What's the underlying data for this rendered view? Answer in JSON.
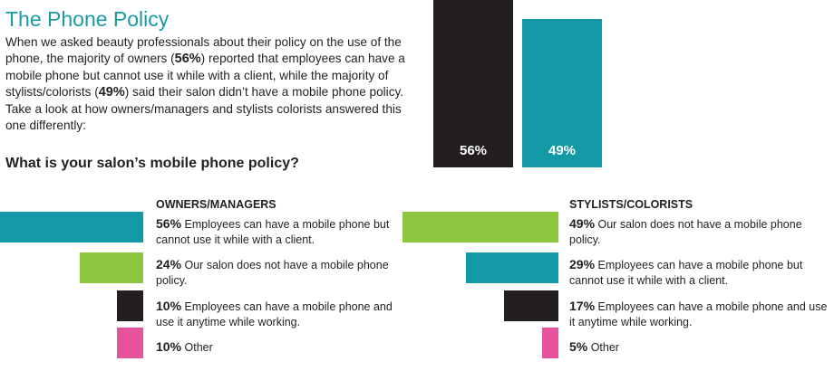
{
  "title": "The Phone Policy",
  "intro": {
    "part1": "When we asked beauty professionals about their policy on the use of the phone, the majority of owners (",
    "owners_pct": "56%",
    "part2": ") reported that employees can have a mobile phone but cannot use it while with a client, while the majority of stylists/colorists (",
    "stylists_pct": "49%",
    "part3": ") said their salon didn’t have a mobile phone policy. Take a look at how owners/managers and stylists colorists answered this one differently:"
  },
  "question": "What is your salon’s mobile phone policy?",
  "colors": {
    "teal": "#139aa6",
    "green": "#8dc63f",
    "black": "#231f20",
    "pink": "#e8519c",
    "title": "#1a9aa6"
  },
  "chart_data": [
    {
      "type": "bar",
      "title": "",
      "categories": [
        "Owners/Managers",
        "Stylists/Colorists"
      ],
      "values": [
        56,
        49
      ],
      "labels": [
        "56%",
        "49%"
      ],
      "colors": [
        "#231f20",
        "#139aa6"
      ],
      "note": "bars cropped at top of image"
    },
    {
      "type": "bar",
      "orientation": "horizontal",
      "title": "OWNERS/MANAGERS",
      "values": [
        56,
        24,
        10,
        10
      ],
      "pct_labels": [
        "56%",
        "24%",
        "10%",
        "10%"
      ],
      "categories": [
        "Employees can have a mobile phone but cannot use it while with a client.",
        "Our salon does not have a mobile phone policy.",
        "Employees can have a mobile phone and use it anytime while working.",
        "Other"
      ],
      "colors": [
        "#139aa6",
        "#8dc63f",
        "#231f20",
        "#e8519c"
      ]
    },
    {
      "type": "bar",
      "orientation": "horizontal",
      "title": "STYLISTS/COLORISTS",
      "values": [
        49,
        29,
        17,
        5
      ],
      "pct_labels": [
        "49%",
        "29%",
        "17%",
        "5%"
      ],
      "categories": [
        "Our salon does not have a mobile phone policy.",
        "Employees can have a mobile phone but cannot use it while with a client.",
        "Employees can have a mobile phone and use it anytime while working.",
        "Other"
      ],
      "colors": [
        "#8dc63f",
        "#139aa6",
        "#231f20",
        "#e8519c"
      ]
    }
  ]
}
